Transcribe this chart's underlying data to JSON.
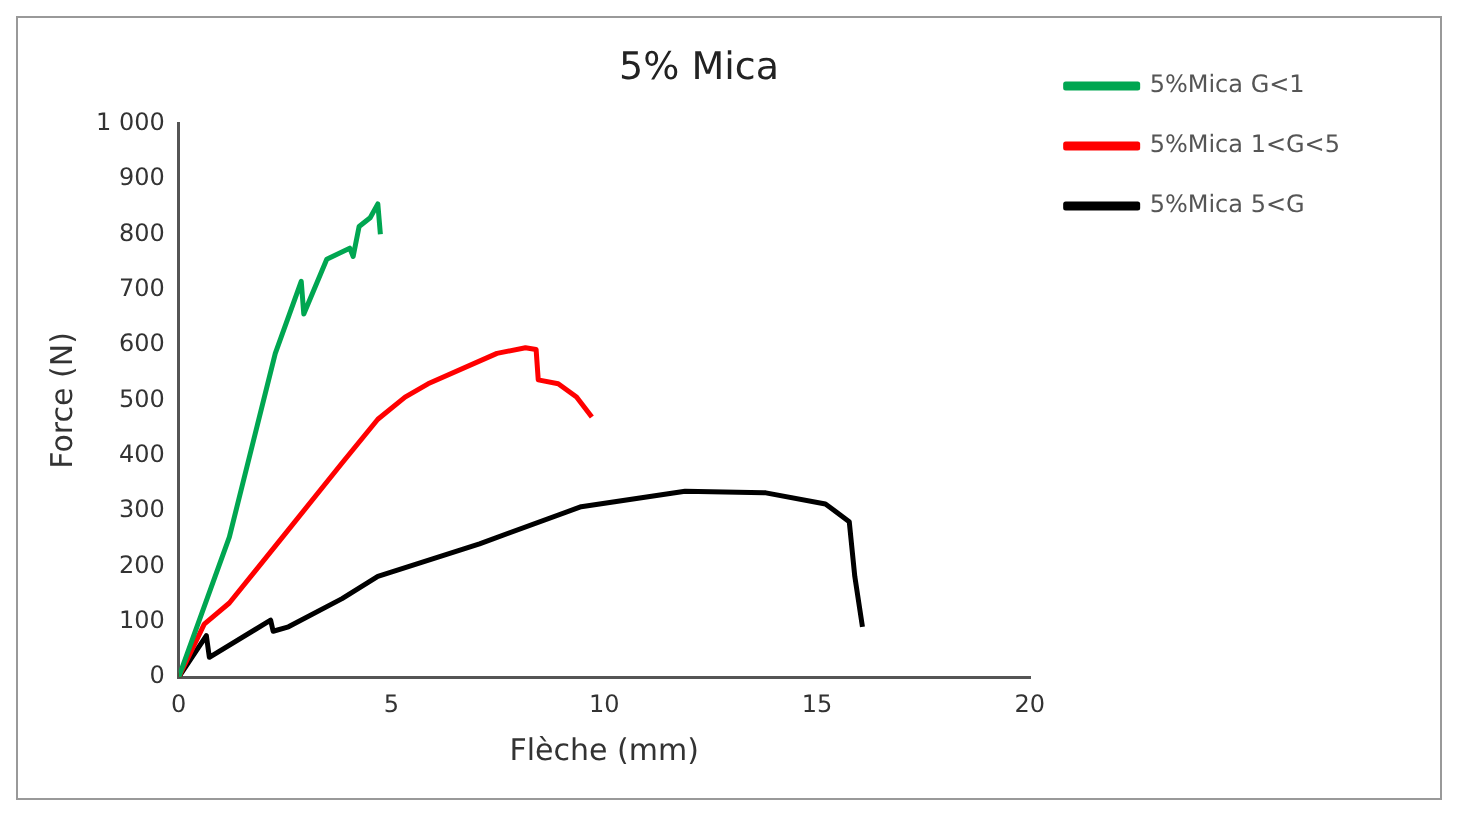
{
  "chart_data": {
    "type": "line",
    "title": "5% Mica",
    "xlabel": "Flèche (mm)",
    "ylabel": "Force (N)",
    "xlim": [
      0,
      20
    ],
    "xticks": [
      0,
      5,
      10,
      15,
      20
    ],
    "ylim": [
      0,
      1000
    ],
    "yticks": [
      0,
      100,
      200,
      300,
      400,
      500,
      600,
      700,
      800,
      900,
      {
        "value": 1000,
        "label": "1 000"
      }
    ],
    "grid": false,
    "legend": "right",
    "marker": "none",
    "line_style": "solid",
    "series": [
      {
        "name": "5%Mica G<1",
        "color": "#00a651",
        "x": [
          0,
          1.19,
          2.27,
          2.88,
          2.94,
          3.48,
          4.02,
          4.1,
          4.24,
          4.5,
          4.68,
          4.74
        ],
        "values": [
          0,
          253,
          585,
          715,
          656,
          755,
          775,
          760,
          814,
          830,
          855,
          800
        ]
      },
      {
        "name": "5%Mica 1<G<5",
        "color": "#ff0000",
        "x": [
          0,
          0.6,
          1.19,
          2.44,
          3.84,
          4.68,
          5.32,
          5.86,
          7.48,
          8.15,
          8.4,
          8.45,
          8.92,
          9.35,
          9.71
        ],
        "values": [
          0,
          96,
          134,
          253,
          387,
          466,
          506,
          530,
          585,
          595,
          592,
          537,
          530,
          506,
          470
        ]
      },
      {
        "name": "5%Mica 5<G",
        "color": "#000000",
        "x": [
          0,
          0.65,
          0.72,
          2.16,
          2.22,
          2.58,
          3.84,
          4.68,
          7.07,
          9.46,
          11.9,
          13.8,
          15.2,
          15.76,
          15.89,
          16.07
        ],
        "values": [
          0,
          75,
          36,
          103,
          83,
          91,
          142,
          182,
          241,
          308,
          336,
          333,
          313,
          281,
          182,
          91
        ]
      }
    ]
  }
}
